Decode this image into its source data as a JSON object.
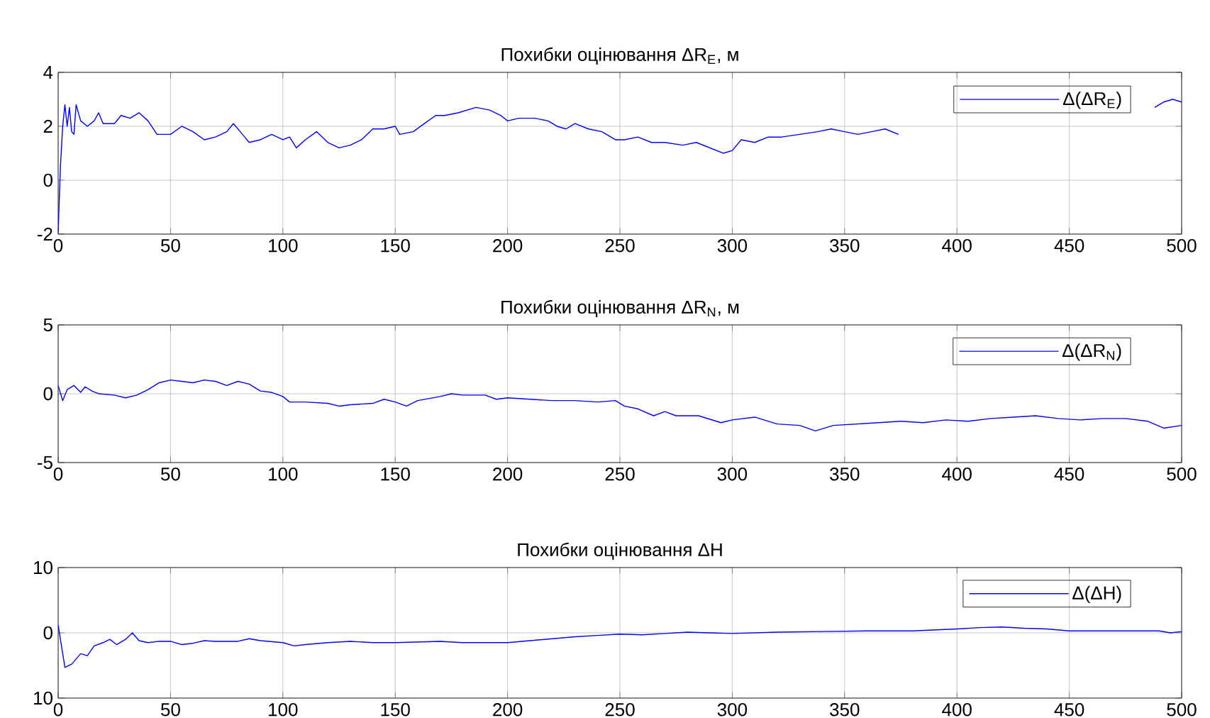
{
  "chart_data": [
    {
      "type": "line",
      "title": "Похибки оцінювання ΔR$_{E}$, м",
      "xlim": [
        0,
        500
      ],
      "xticks": [
        0,
        50,
        100,
        150,
        200,
        250,
        300,
        350,
        400,
        450,
        500
      ],
      "ylim": [
        -2,
        4
      ],
      "yticks": [
        -2,
        0,
        2,
        4
      ],
      "grid": true,
      "legend": "top right",
      "x": [
        0,
        1,
        2,
        3,
        4,
        5,
        6,
        7,
        8,
        10,
        13,
        16,
        18,
        20,
        25,
        28,
        32,
        36,
        40,
        44,
        50,
        55,
        60,
        65,
        70,
        75,
        78,
        82,
        85,
        90,
        95,
        100,
        103,
        106,
        110,
        115,
        120,
        125,
        130,
        135,
        140,
        145,
        150,
        152,
        158,
        163,
        168,
        172,
        178,
        186,
        192,
        197,
        200,
        205,
        212,
        218,
        222,
        226,
        230,
        236,
        242,
        248,
        252,
        258,
        264,
        270,
        278,
        284,
        290,
        296,
        300,
        304,
        310,
        316,
        322,
        330,
        338,
        344,
        350,
        356,
        362,
        368,
        374,
        430,
        488,
        492,
        496,
        500
      ],
      "series": [
        {
          "name": "Δ(ΔR$_{E}$)",
          "color": "#0000ff",
          "values": [
            -1.9,
            0.5,
            2.0,
            2.8,
            2.0,
            2.7,
            1.8,
            1.7,
            2.8,
            2.2,
            2.0,
            2.2,
            2.5,
            2.1,
            2.1,
            2.4,
            2.3,
            2.5,
            2.2,
            1.7,
            1.7,
            2.0,
            1.8,
            1.5,
            1.6,
            1.8,
            2.1,
            1.7,
            1.4,
            1.5,
            1.7,
            1.5,
            1.6,
            1.2,
            1.5,
            1.8,
            1.4,
            1.2,
            1.3,
            1.5,
            1.9,
            1.9,
            2.0,
            1.7,
            1.8,
            2.1,
            2.4,
            2.4,
            2.5,
            2.7,
            2.6,
            2.4,
            2.2,
            2.3,
            2.3,
            2.2,
            2.0,
            1.9,
            2.1,
            1.9,
            1.8,
            1.5,
            1.5,
            1.6,
            1.4,
            1.4,
            1.3,
            1.4,
            1.2,
            1.0,
            1.1,
            1.5,
            1.4,
            1.6,
            1.6,
            1.7,
            1.8,
            1.9,
            1.8,
            1.7,
            1.8,
            1.9,
            1.7,
            null,
            2.7,
            2.9,
            3.0,
            2.9
          ]
        }
      ]
    },
    {
      "type": "line",
      "title": "Похибки оцінювання ΔR$_{N}$, м",
      "xlim": [
        0,
        500
      ],
      "xticks": [
        0,
        50,
        100,
        150,
        200,
        250,
        300,
        350,
        400,
        450,
        500
      ],
      "ylim": [
        -5,
        5
      ],
      "yticks": [
        -5,
        0,
        5
      ],
      "grid": true,
      "legend": "top right",
      "x": [
        0,
        2,
        4,
        7,
        10,
        12,
        15,
        18,
        25,
        30,
        35,
        40,
        45,
        50,
        55,
        60,
        65,
        70,
        75,
        80,
        85,
        90,
        95,
        100,
        103,
        110,
        120,
        125,
        130,
        140,
        145,
        150,
        155,
        160,
        170,
        175,
        180,
        190,
        195,
        200,
        210,
        220,
        230,
        240,
        248,
        252,
        258,
        265,
        270,
        275,
        285,
        295,
        300,
        310,
        320,
        330,
        337,
        345,
        355,
        365,
        375,
        385,
        395,
        405,
        415,
        425,
        435,
        445,
        455,
        465,
        475,
        485,
        492,
        500
      ],
      "series": [
        {
          "name": "Δ(ΔR$_{N}$)",
          "color": "#0000ff",
          "values": [
            0.6,
            -0.5,
            0.3,
            0.6,
            0.1,
            0.5,
            0.2,
            0,
            -0.1,
            -0.3,
            -0.1,
            0.3,
            0.8,
            1.0,
            0.9,
            0.8,
            1.0,
            0.9,
            0.6,
            0.9,
            0.7,
            0.2,
            0.1,
            -0.2,
            -0.6,
            -0.6,
            -0.7,
            -0.9,
            -0.8,
            -0.7,
            -0.4,
            -0.6,
            -0.9,
            -0.5,
            -0.2,
            0,
            -0.1,
            -0.1,
            -0.4,
            -0.3,
            -0.4,
            -0.5,
            -0.5,
            -0.6,
            -0.5,
            -0.9,
            -1.1,
            -1.6,
            -1.3,
            -1.6,
            -1.6,
            -2.1,
            -1.9,
            -1.7,
            -2.2,
            -2.3,
            -2.7,
            -2.3,
            -2.2,
            -2.1,
            -2.0,
            -2.1,
            -1.9,
            -2.0,
            -1.8,
            -1.7,
            -1.6,
            -1.8,
            -1.9,
            -1.8,
            -1.8,
            -2.0,
            -2.5,
            -2.3
          ]
        }
      ]
    },
    {
      "type": "line",
      "title": "Похибки оцінювання ΔH",
      "xlim": [
        0,
        500
      ],
      "xticks": [
        0,
        50,
        100,
        150,
        200,
        250,
        300,
        350,
        400,
        450,
        500
      ],
      "ylim": [
        -10,
        10
      ],
      "yticks": [
        {
          "value": -10,
          "label": "10"
        },
        0,
        10
      ],
      "grid": true,
      "legend": "top right",
      "x": [
        0,
        1,
        3,
        6,
        10,
        13,
        16,
        20,
        23,
        26,
        30,
        33,
        36,
        40,
        45,
        50,
        55,
        60,
        65,
        70,
        80,
        85,
        90,
        100,
        105,
        110,
        120,
        130,
        140,
        150,
        160,
        170,
        180,
        190,
        200,
        210,
        220,
        230,
        240,
        250,
        260,
        270,
        280,
        290,
        300,
        320,
        340,
        360,
        380,
        400,
        410,
        420,
        430,
        440,
        450,
        470,
        490,
        495,
        500
      ],
      "series": [
        {
          "name": "Δ(ΔH)",
          "color": "#0000ff",
          "values": [
            1.2,
            -1,
            -5.3,
            -4.8,
            -3.2,
            -3.5,
            -2.0,
            -1.5,
            -1.0,
            -1.8,
            -1.0,
            0,
            -1.2,
            -1.5,
            -1.3,
            -1.3,
            -1.8,
            -1.6,
            -1.2,
            -1.3,
            -1.3,
            -0.9,
            -1.2,
            -1.5,
            -2.0,
            -1.8,
            -1.5,
            -1.3,
            -1.5,
            -1.5,
            -1.4,
            -1.3,
            -1.5,
            -1.5,
            -1.5,
            -1.2,
            -0.9,
            -0.6,
            -0.4,
            -0.2,
            -0.3,
            -0.1,
            0.1,
            0,
            -0.1,
            0.1,
            0.2,
            0.3,
            0.3,
            0.6,
            0.8,
            0.9,
            0.7,
            0.6,
            0.3,
            0.3,
            0.3,
            0,
            0.2
          ]
        }
      ]
    }
  ]
}
